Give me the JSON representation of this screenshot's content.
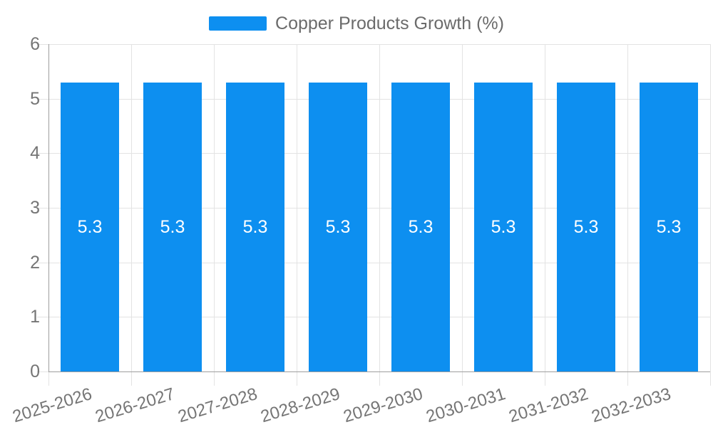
{
  "legend": {
    "label": "Copper Products Growth (%)"
  },
  "colors": {
    "bar": "#0d8ff0",
    "axis_line": "#9e9e9e",
    "grid_line": "#e3e3e3",
    "tick_label": "#757575",
    "legend_label": "#6b6b6b",
    "value_label": "#ffffff",
    "background": "#ffffff"
  },
  "chart_data": {
    "type": "bar",
    "title": "",
    "categories": [
      "2025-2026",
      "2026-2027",
      "2027-2028",
      "2028-2029",
      "2029-2030",
      "2030-2031",
      "2031-2032",
      "2032-2033"
    ],
    "series": [
      {
        "name": "Copper Products Growth (%)",
        "values": [
          5.3,
          5.3,
          5.3,
          5.3,
          5.3,
          5.3,
          5.3,
          5.3
        ]
      }
    ],
    "data_labels": [
      "5.3",
      "5.3",
      "5.3",
      "5.3",
      "5.3",
      "5.3",
      "5.3",
      "5.3"
    ],
    "xlabel": "",
    "ylabel": "",
    "ylim": [
      0,
      6
    ],
    "yticks": [
      0,
      1,
      2,
      3,
      4,
      5,
      6
    ],
    "grid": true,
    "legend_position": "top-center",
    "x_tick_rotation_deg": -17,
    "value_label_position": "center-inside"
  }
}
